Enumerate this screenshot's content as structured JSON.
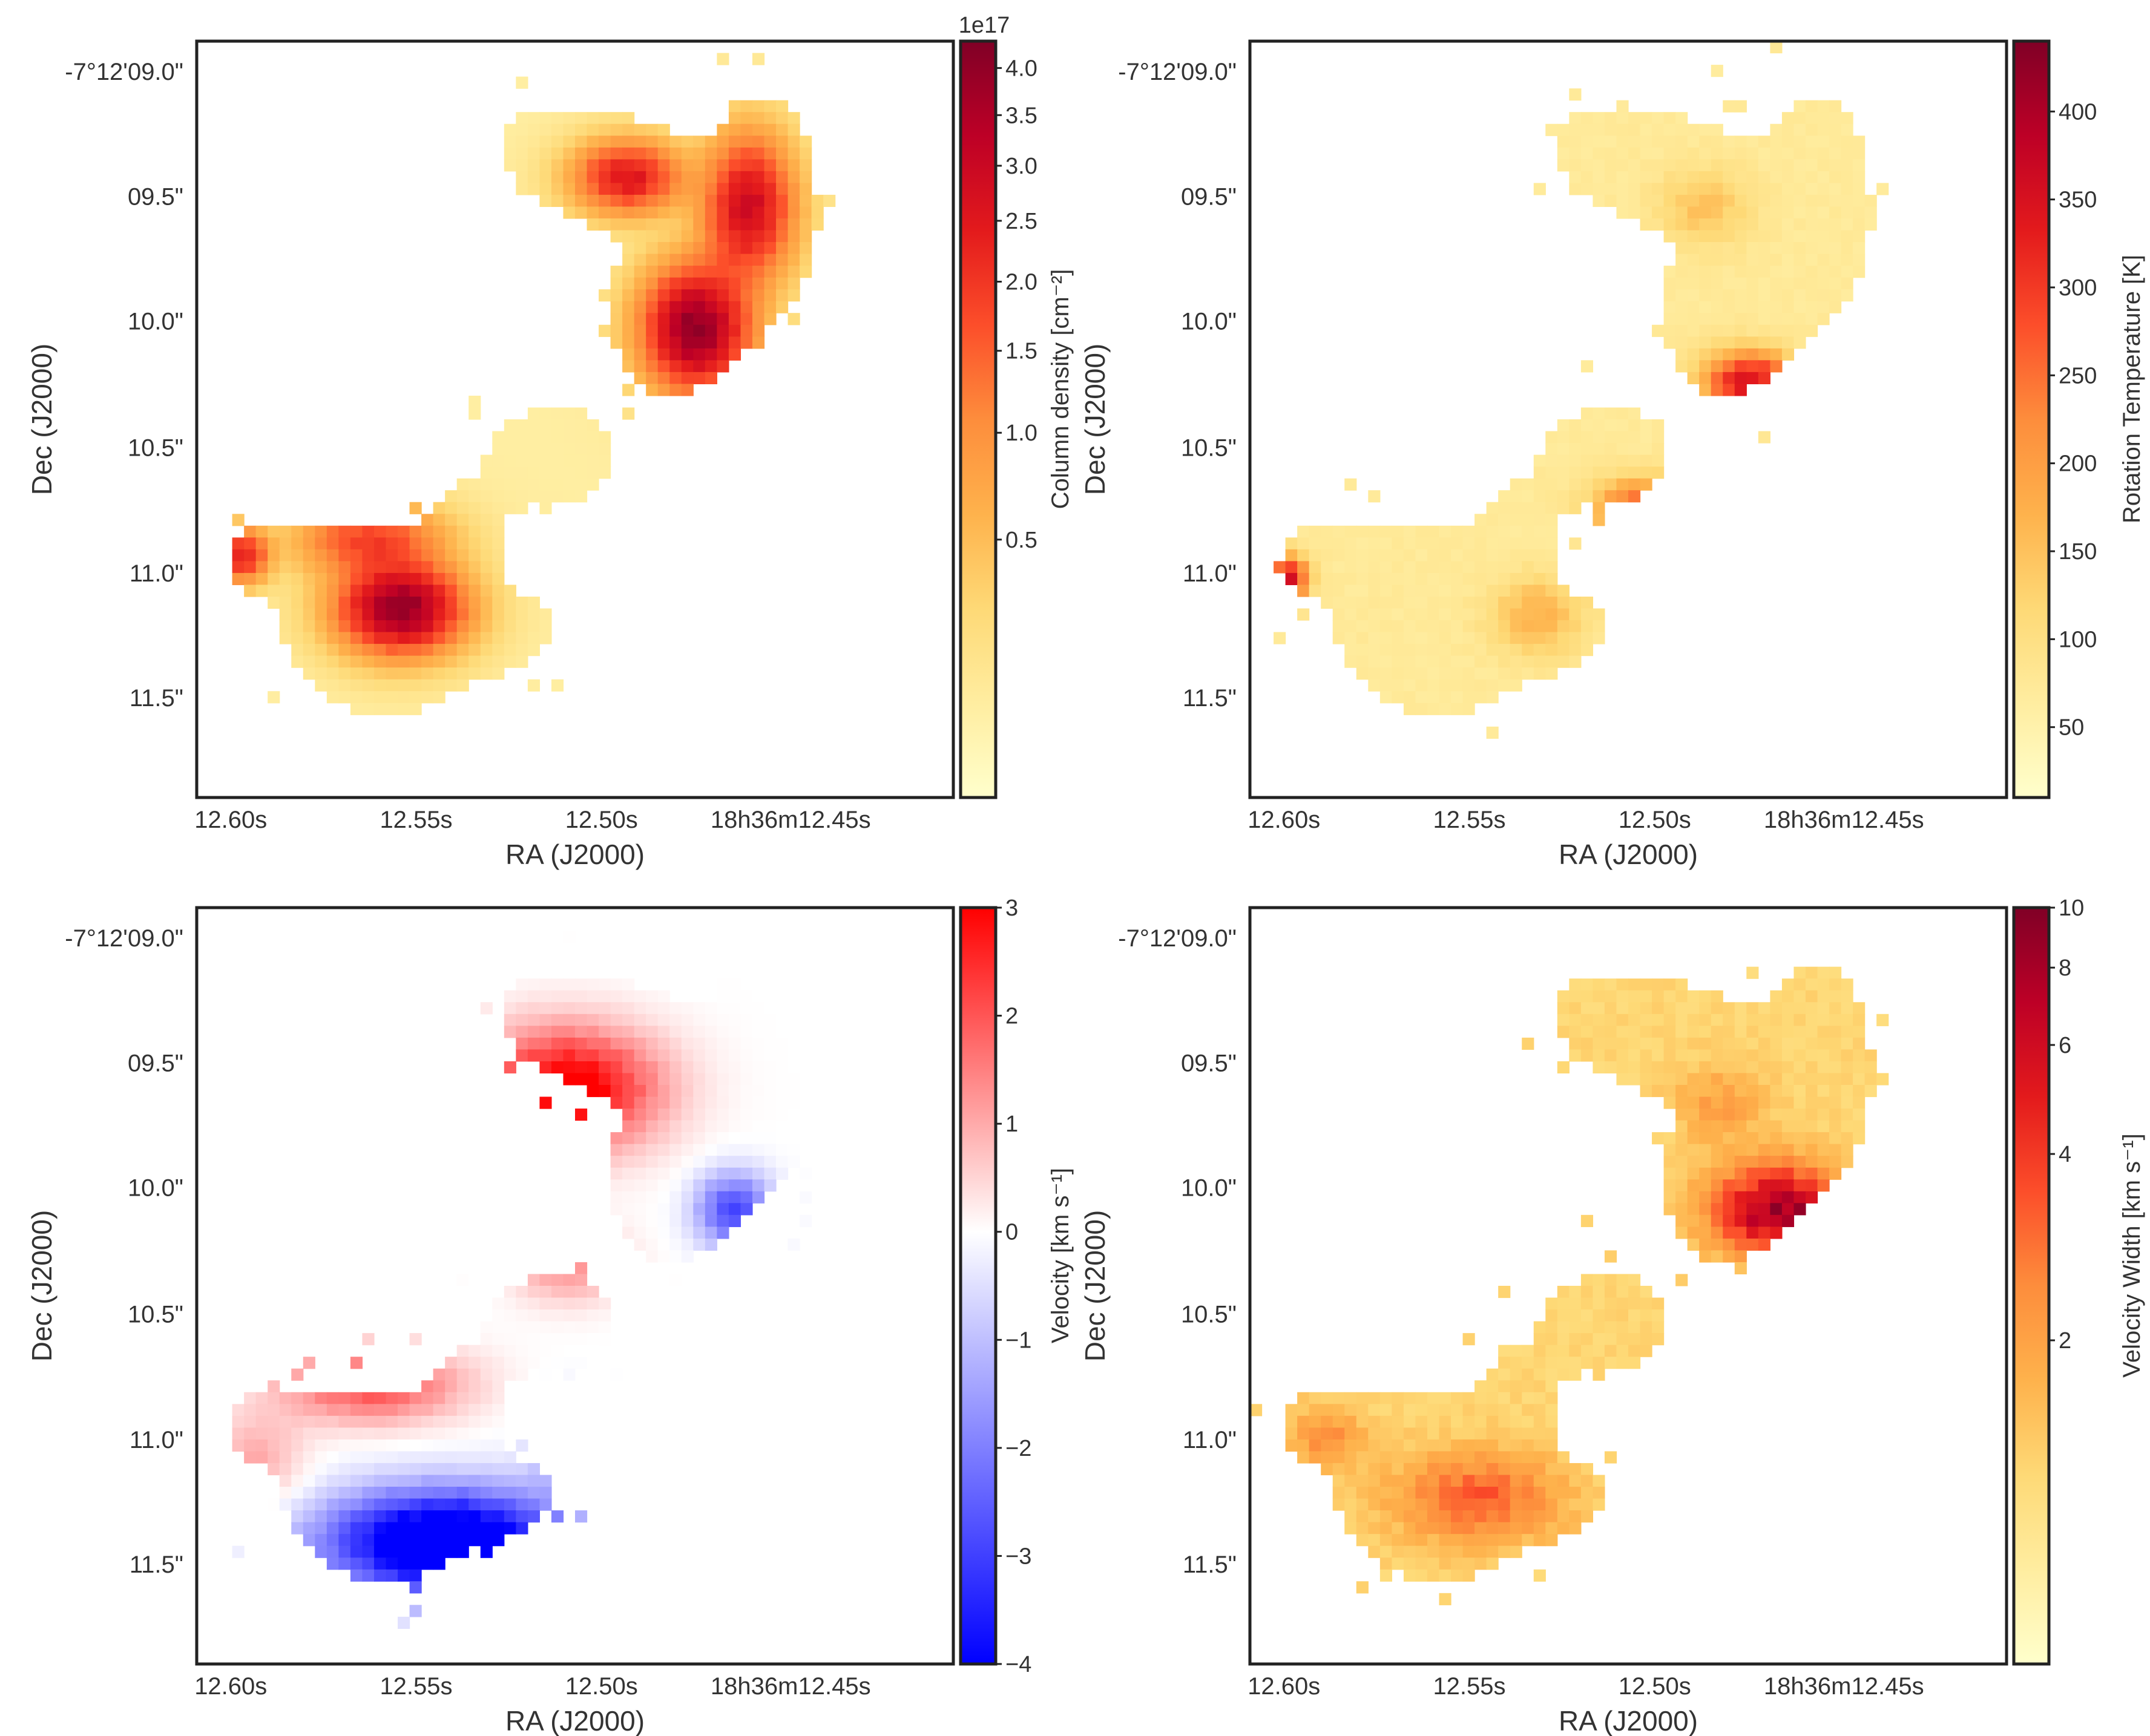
{
  "chart_data": [
    {
      "type": "heatmap",
      "id": "coldens",
      "xlabel": "RA (J2000)",
      "ylabel": "Dec (J2000)",
      "x_ticks": [
        "12.60s",
        "12.55s",
        "12.50s",
        "18h36m12.45s"
      ],
      "y_ticks": [
        "-7°12'09.0\"",
        "09.5\"",
        "10.0\"",
        "10.5\"",
        "11.0\"",
        "11.5\""
      ],
      "colormap": "YlOrRd",
      "colorbar": {
        "label": "Column density [cm$^{-2}$]",
        "label_text": "Column density [cm⁻²]",
        "offset_text": "1e17",
        "ticks": [
          "4.0",
          "3.5",
          "3.0",
          "2.5",
          "2.0",
          "1.5",
          "1.0",
          "0.5"
        ],
        "tick_values": [
          4.0,
          3.5,
          3.0,
          2.5,
          2.0,
          1.5,
          1.0,
          0.5
        ],
        "scale": "sqrt",
        "range": [
          0,
          4.3
        ]
      }
    },
    {
      "type": "heatmap",
      "id": "temperature",
      "xlabel": "RA (J2000)",
      "ylabel": "Dec (J2000)",
      "x_ticks": [
        "12.60s",
        "12.55s",
        "12.50s",
        "18h36m12.45s"
      ],
      "y_ticks": [
        "-7°12'09.0\"",
        "09.5\"",
        "10.0\"",
        "10.5\"",
        "11.0\"",
        "11.5\""
      ],
      "colormap": "YlOrRd",
      "colorbar": {
        "label_text": "Rotation Temperature [K]",
        "ticks": [
          "400",
          "350",
          "300",
          "250",
          "200",
          "150",
          "100",
          "50"
        ],
        "tick_values": [
          400,
          350,
          300,
          250,
          200,
          150,
          100,
          50
        ],
        "scale": "linear",
        "range": [
          10,
          440
        ]
      }
    },
    {
      "type": "heatmap",
      "id": "velocity",
      "xlabel": "RA (J2000)",
      "ylabel": "Dec (J2000)",
      "x_ticks": [
        "12.60s",
        "12.55s",
        "12.50s",
        "18h36m12.45s"
      ],
      "y_ticks": [
        "-7°12'09.0\"",
        "09.5\"",
        "10.0\"",
        "10.5\"",
        "11.0\"",
        "11.5\""
      ],
      "colormap": "bwr",
      "colorbar": {
        "label_text": "Velocity [km s⁻¹]",
        "ticks": [
          "3",
          "2",
          "1",
          "0",
          "−1",
          "−2",
          "−3",
          "−4"
        ],
        "tick_values": [
          3,
          2,
          1,
          0,
          -1,
          -2,
          -3,
          -4
        ],
        "scale": "linear",
        "range": [
          -4,
          3
        ]
      }
    },
    {
      "type": "heatmap",
      "id": "width",
      "xlabel": "RA (J2000)",
      "ylabel": "Dec (J2000)",
      "x_ticks": [
        "12.60s",
        "12.55s",
        "12.50s",
        "18h36m12.45s"
      ],
      "y_ticks": [
        "-7°12'09.0\"",
        "09.5\"",
        "10.0\"",
        "10.5\"",
        "11.0\"",
        "11.5\""
      ],
      "colormap": "YlOrRd",
      "colorbar": {
        "label_text": "Velocity Width [km s⁻¹]",
        "ticks": [
          "10",
          "8",
          "6",
          "4",
          "2"
        ],
        "tick_values": [
          10,
          8,
          6,
          4,
          2
        ],
        "scale": "log",
        "range": [
          0.6,
          10
        ]
      }
    }
  ],
  "colors": {
    "ylorrd": [
      "#ffffcc",
      "#ffeda0",
      "#fed976",
      "#feb24c",
      "#fd8d3c",
      "#fc4e2a",
      "#e31a1c",
      "#bd0026",
      "#800026"
    ],
    "bwr": [
      "#0000ff",
      "#ffffff",
      "#ff0000"
    ]
  }
}
